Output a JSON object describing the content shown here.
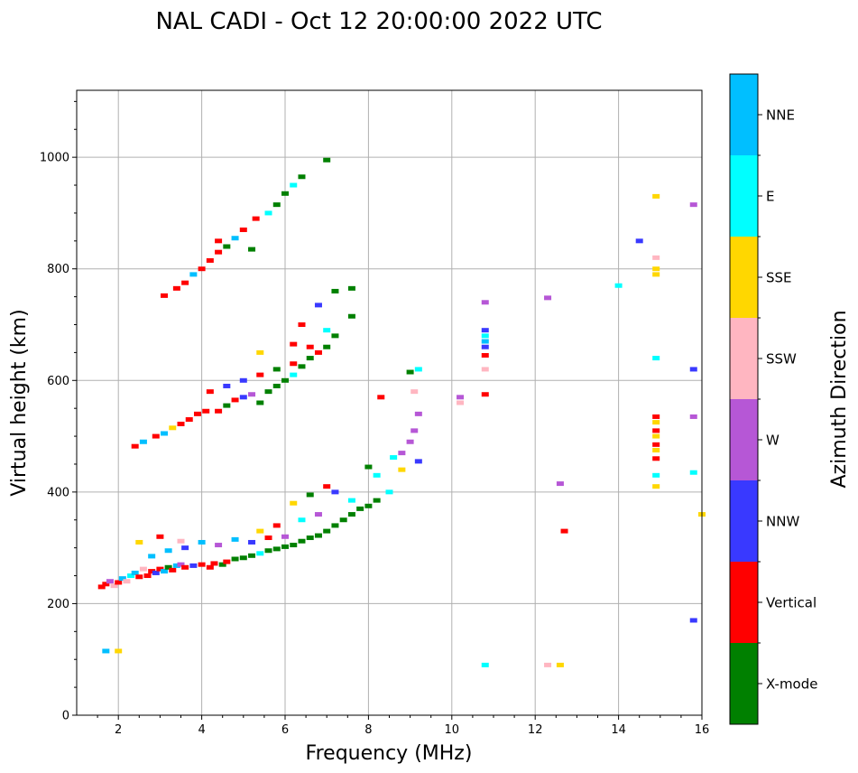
{
  "chart_data": {
    "type": "scatter",
    "title": "NAL CADI - Oct 12 20:00:00 2022 UTC",
    "xlabel": "Frequency (MHz)",
    "ylabel": "Virtual height (km)",
    "xlim": [
      1,
      16
    ],
    "ylim": [
      0,
      1120
    ],
    "xticks": [
      2,
      4,
      6,
      8,
      10,
      12,
      14,
      16
    ],
    "yticks": [
      0,
      200,
      400,
      600,
      800,
      1000
    ],
    "grid": true,
    "colorbar": {
      "label": "Azimuth Direction",
      "categories": [
        {
          "name": "X-mode",
          "color": "#008000"
        },
        {
          "name": "Vertical",
          "color": "#ff0000"
        },
        {
          "name": "NNW",
          "color": "#3939ff"
        },
        {
          "name": "W",
          "color": "#b657d6"
        },
        {
          "name": "SSW",
          "color": "#ffb6c1"
        },
        {
          "name": "SSE",
          "color": "#ffd700"
        },
        {
          "name": "E",
          "color": "#00ffff"
        },
        {
          "name": "NNE",
          "color": "#00bfff"
        }
      ]
    },
    "points": [
      [
        1.6,
        230,
        1
      ],
      [
        1.7,
        235,
        1
      ],
      [
        1.8,
        240,
        3
      ],
      [
        1.9,
        232,
        4
      ],
      [
        2.0,
        238,
        1
      ],
      [
        2.1,
        245,
        7
      ],
      [
        2.2,
        240,
        4
      ],
      [
        2.3,
        250,
        6
      ],
      [
        2.4,
        255,
        7
      ],
      [
        2.5,
        248,
        1
      ],
      [
        2.6,
        262,
        4
      ],
      [
        2.7,
        250,
        1
      ],
      [
        2.8,
        258,
        1
      ],
      [
        2.9,
        255,
        2
      ],
      [
        3.0,
        262,
        1
      ],
      [
        3.1,
        258,
        7
      ],
      [
        3.2,
        265,
        0
      ],
      [
        3.3,
        260,
        1
      ],
      [
        3.4,
        268,
        7
      ],
      [
        3.5,
        270,
        3
      ],
      [
        3.6,
        265,
        1
      ],
      [
        3.8,
        268,
        2
      ],
      [
        4.0,
        270,
        1
      ],
      [
        4.2,
        265,
        1
      ],
      [
        4.3,
        272,
        1
      ],
      [
        4.5,
        270,
        0
      ],
      [
        4.6,
        275,
        1
      ],
      [
        4.8,
        280,
        0
      ],
      [
        5.0,
        282,
        0
      ],
      [
        5.2,
        286,
        0
      ],
      [
        5.4,
        290,
        6
      ],
      [
        5.6,
        295,
        0
      ],
      [
        5.8,
        298,
        0
      ],
      [
        6.0,
        302,
        0
      ],
      [
        6.2,
        305,
        0
      ],
      [
        6.4,
        312,
        0
      ],
      [
        6.6,
        318,
        0
      ],
      [
        6.8,
        322,
        0
      ],
      [
        7.0,
        330,
        0
      ],
      [
        7.2,
        340,
        0
      ],
      [
        7.4,
        350,
        0
      ],
      [
        7.6,
        360,
        0
      ],
      [
        7.8,
        370,
        0
      ],
      [
        8.0,
        375,
        0
      ],
      [
        8.2,
        385,
        0
      ],
      [
        8.5,
        400,
        6
      ],
      [
        2.8,
        285,
        7
      ],
      [
        3.2,
        295,
        7
      ],
      [
        3.6,
        300,
        2
      ],
      [
        4.0,
        310,
        7
      ],
      [
        4.4,
        305,
        3
      ],
      [
        4.8,
        315,
        7
      ],
      [
        5.2,
        310,
        2
      ],
      [
        5.6,
        318,
        1
      ],
      [
        6.0,
        320,
        3
      ],
      [
        6.4,
        350,
        6
      ],
      [
        6.8,
        360,
        3
      ],
      [
        7.2,
        400,
        2
      ],
      [
        7.6,
        385,
        6
      ],
      [
        5.4,
        330,
        5
      ],
      [
        5.8,
        340,
        1
      ],
      [
        6.2,
        380,
        5
      ],
      [
        6.6,
        395,
        0
      ],
      [
        7.0,
        410,
        1
      ],
      [
        2.5,
        310,
        5
      ],
      [
        3.0,
        320,
        1
      ],
      [
        3.5,
        312,
        4
      ],
      [
        1.7,
        115,
        7
      ],
      [
        2.0,
        115,
        5
      ],
      [
        2.4,
        482,
        1
      ],
      [
        2.6,
        490,
        7
      ],
      [
        2.9,
        500,
        1
      ],
      [
        3.1,
        505,
        7
      ],
      [
        3.3,
        515,
        5
      ],
      [
        3.5,
        522,
        1
      ],
      [
        3.7,
        530,
        1
      ],
      [
        3.9,
        540,
        1
      ],
      [
        4.1,
        545,
        1
      ],
      [
        4.4,
        545,
        1
      ],
      [
        4.6,
        555,
        0
      ],
      [
        4.8,
        565,
        1
      ],
      [
        5.0,
        570,
        2
      ],
      [
        5.2,
        575,
        3
      ],
      [
        5.4,
        560,
        0
      ],
      [
        5.6,
        580,
        0
      ],
      [
        5.8,
        590,
        0
      ],
      [
        6.0,
        600,
        0
      ],
      [
        6.2,
        610,
        6
      ],
      [
        6.4,
        625,
        0
      ],
      [
        6.6,
        640,
        0
      ],
      [
        6.8,
        650,
        1
      ],
      [
        7.0,
        660,
        0
      ],
      [
        7.2,
        680,
        0
      ],
      [
        7.6,
        715,
        0
      ],
      [
        7.6,
        765,
        0
      ],
      [
        7.2,
        760,
        0
      ],
      [
        4.2,
        580,
        1
      ],
      [
        4.6,
        590,
        2
      ],
      [
        5.0,
        600,
        2
      ],
      [
        5.4,
        610,
        1
      ],
      [
        5.8,
        620,
        0
      ],
      [
        6.2,
        630,
        1
      ],
      [
        6.6,
        660,
        1
      ],
      [
        7.0,
        690,
        6
      ],
      [
        5.4,
        650,
        5
      ],
      [
        6.2,
        665,
        1
      ],
      [
        6.4,
        700,
        1
      ],
      [
        6.8,
        735,
        2
      ],
      [
        3.1,
        752,
        1
      ],
      [
        3.4,
        765,
        1
      ],
      [
        3.6,
        775,
        1
      ],
      [
        3.8,
        790,
        7
      ],
      [
        4.0,
        800,
        1
      ],
      [
        4.2,
        815,
        1
      ],
      [
        4.4,
        830,
        1
      ],
      [
        4.6,
        840,
        0
      ],
      [
        4.8,
        855,
        7
      ],
      [
        5.0,
        870,
        1
      ],
      [
        5.3,
        890,
        1
      ],
      [
        5.6,
        900,
        6
      ],
      [
        5.8,
        915,
        0
      ],
      [
        6.0,
        935,
        0
      ],
      [
        6.2,
        950,
        6
      ],
      [
        6.4,
        965,
        0
      ],
      [
        7.0,
        995,
        0
      ],
      [
        4.4,
        850,
        1
      ],
      [
        5.2,
        835,
        0
      ],
      [
        8.0,
        445,
        0
      ],
      [
        8.2,
        430,
        6
      ],
      [
        8.6,
        462,
        6
      ],
      [
        8.8,
        470,
        3
      ],
      [
        9.0,
        490,
        3
      ],
      [
        9.1,
        510,
        3
      ],
      [
        9.2,
        540,
        3
      ],
      [
        9.2,
        455,
        2
      ],
      [
        9.0,
        615,
        0
      ],
      [
        9.1,
        580,
        4
      ],
      [
        8.8,
        440,
        5
      ],
      [
        9.2,
        620,
        6
      ],
      [
        8.3,
        570,
        1
      ],
      [
        10.2,
        570,
        3
      ],
      [
        10.2,
        560,
        4
      ],
      [
        10.8,
        740,
        3
      ],
      [
        10.8,
        690,
        2
      ],
      [
        10.8,
        680,
        6
      ],
      [
        10.8,
        670,
        7
      ],
      [
        10.8,
        660,
        2
      ],
      [
        10.8,
        645,
        1
      ],
      [
        10.8,
        620,
        4
      ],
      [
        10.8,
        575,
        1
      ],
      [
        10.8,
        90,
        6
      ],
      [
        12.3,
        748,
        3
      ],
      [
        12.6,
        415,
        3
      ],
      [
        12.7,
        330,
        1
      ],
      [
        12.6,
        90,
        5
      ],
      [
        12.3,
        90,
        4
      ],
      [
        14.0,
        770,
        6
      ],
      [
        14.5,
        850,
        2
      ],
      [
        14.9,
        930,
        5
      ],
      [
        14.9,
        820,
        4
      ],
      [
        14.9,
        800,
        5
      ],
      [
        14.9,
        790,
        5
      ],
      [
        14.9,
        640,
        6
      ],
      [
        14.9,
        535,
        1
      ],
      [
        14.9,
        525,
        5
      ],
      [
        14.9,
        510,
        1
      ],
      [
        14.9,
        500,
        5
      ],
      [
        14.9,
        485,
        1
      ],
      [
        14.9,
        475,
        5
      ],
      [
        14.9,
        460,
        1
      ],
      [
        14.9,
        430,
        6
      ],
      [
        14.9,
        410,
        5
      ],
      [
        15.8,
        915,
        3
      ],
      [
        15.8,
        620,
        2
      ],
      [
        15.8,
        535,
        3
      ],
      [
        15.8,
        435,
        6
      ],
      [
        15.8,
        170,
        2
      ],
      [
        16.0,
        360,
        5
      ]
    ]
  }
}
